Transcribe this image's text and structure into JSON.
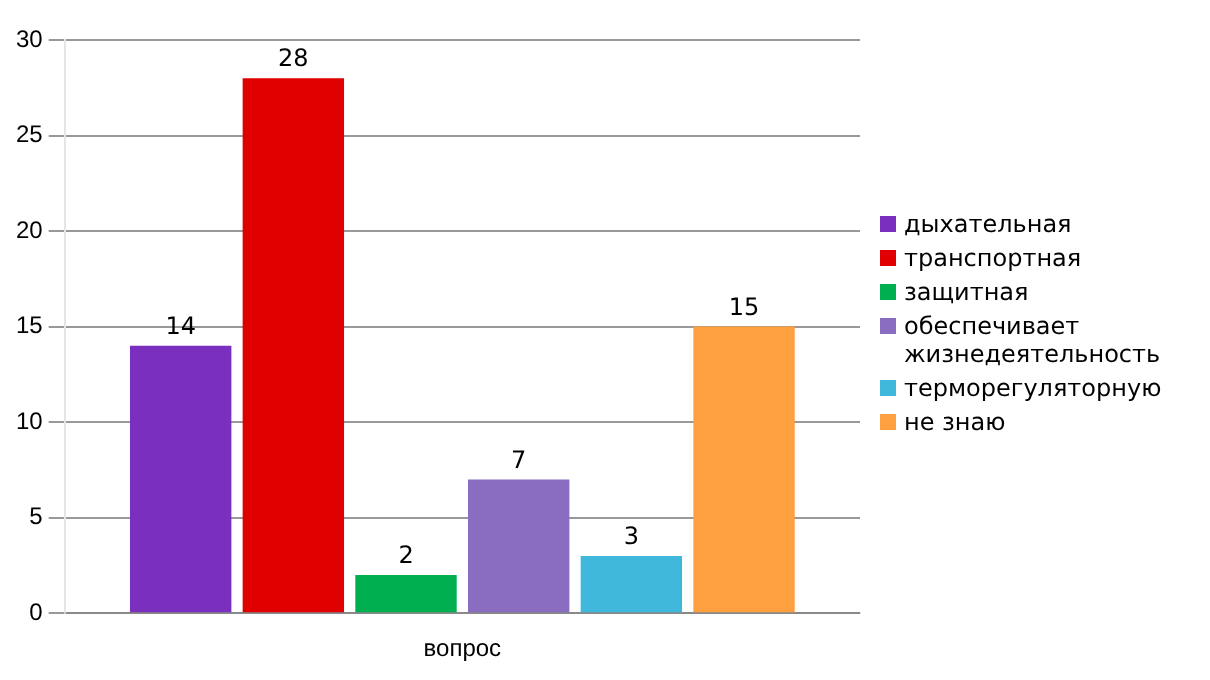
{
  "chart_data": {
    "type": "bar",
    "categories": [
      "вопрос"
    ],
    "series": [
      {
        "name": "дыхательная",
        "color": "#7b2fbf",
        "values": [
          14
        ]
      },
      {
        "name": "транспортная",
        "color": "#e00000",
        "values": [
          28
        ]
      },
      {
        "name": "защитная",
        "color": "#00b050",
        "values": [
          2
        ]
      },
      {
        "name": "обеспечивает жизнедеятельность",
        "color": "#8a6cc0",
        "values": [
          7
        ]
      },
      {
        "name": "терморегуляторную",
        "color": "#40b8dc",
        "values": [
          3
        ]
      },
      {
        "name": "не знаю",
        "color": "#ffa040",
        "values": [
          15
        ]
      }
    ],
    "ylim": [
      0,
      30
    ],
    "yticks": [
      0,
      5,
      10,
      15,
      20,
      25,
      30
    ],
    "grid": "y",
    "legend": "right",
    "data_labels": true
  }
}
